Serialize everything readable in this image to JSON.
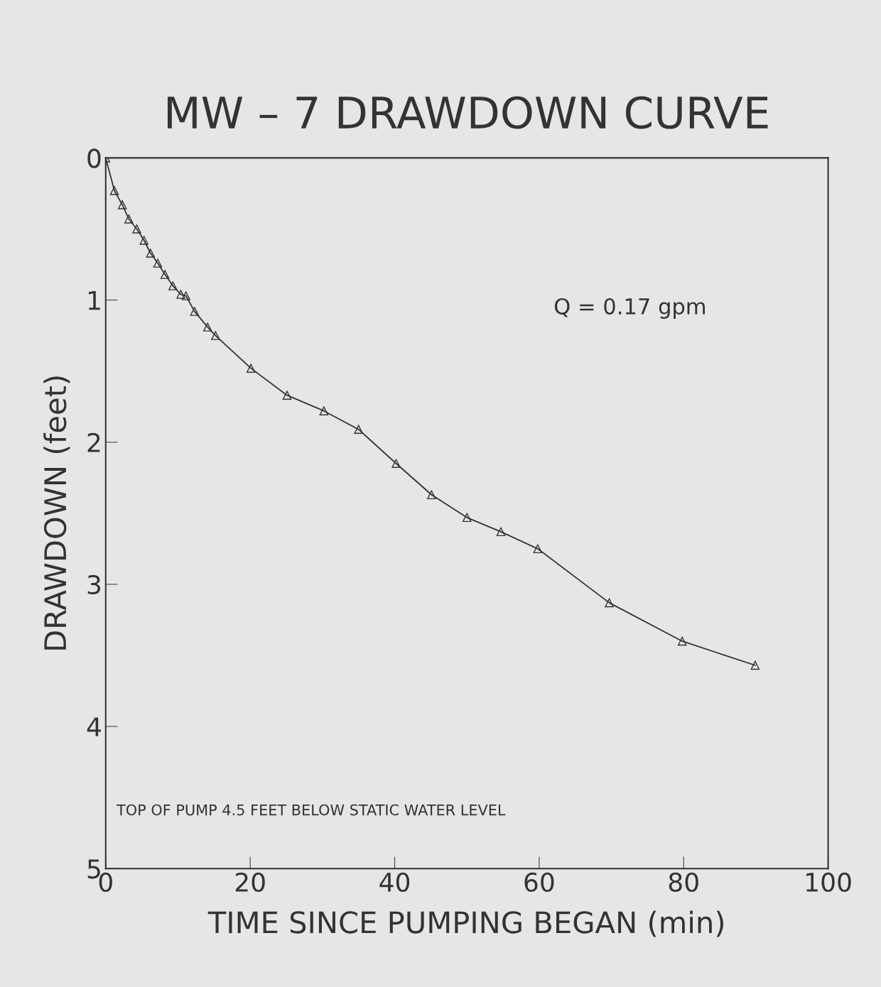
{
  "chart_data": {
    "type": "line",
    "title": "MW – 7 DRAWDOWN CURVE",
    "xlabel": "TIME SINCE PUMPING BEGAN (min)",
    "ylabel": "DRAWDOWN (feet)",
    "x": [
      0,
      1.2,
      2.3,
      3.2,
      4.3,
      5.3,
      6.2,
      7.2,
      8.2,
      9.3,
      10.4,
      11.1,
      12.3,
      14.1,
      15.2,
      20.1,
      25.1,
      30.2,
      35.0,
      40.2,
      45.1,
      50.0,
      54.7,
      59.8,
      69.7,
      79.8,
      89.9
    ],
    "values": [
      0,
      0.23,
      0.33,
      0.43,
      0.5,
      0.58,
      0.67,
      0.74,
      0.82,
      0.9,
      0.96,
      0.97,
      1.08,
      1.19,
      1.25,
      1.48,
      1.67,
      1.78,
      1.91,
      2.15,
      2.37,
      2.53,
      2.63,
      2.75,
      3.13,
      3.4,
      3.57
    ],
    "color": "#333333",
    "marker": "triangle",
    "line_style": "solid",
    "grid": false,
    "legend": false,
    "xlim": [
      0,
      100
    ],
    "xticks": [
      0,
      20,
      40,
      60,
      80,
      100
    ],
    "ylim": [
      5,
      0
    ],
    "yticks": [
      0,
      1,
      2,
      3,
      4,
      5
    ],
    "annotations": [
      "Q = 0.17 gpm",
      "TOP OF PUMP 4.5 FEET BELOW STATIC WATER LEVEL"
    ]
  }
}
